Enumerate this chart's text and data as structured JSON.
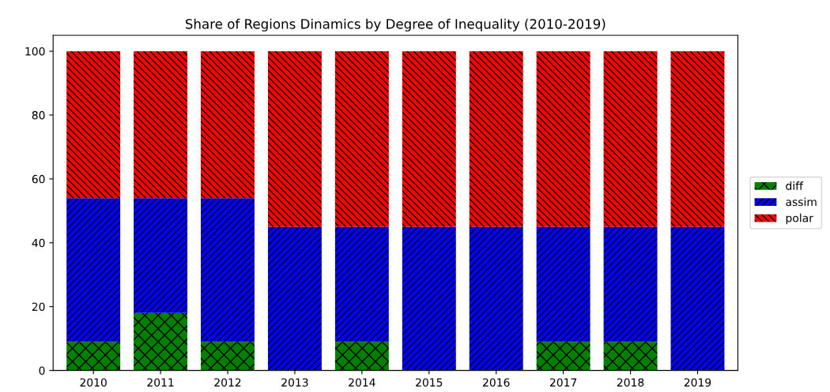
{
  "chart_data": {
    "type": "bar",
    "title": "Share of Regions Dinamics by Degree of Inequality (2010-2019)",
    "categories": [
      "2010",
      "2011",
      "2012",
      "2013",
      "2014",
      "2015",
      "2016",
      "2017",
      "2018",
      "2019"
    ],
    "stacked": true,
    "series": [
      {
        "name": "diff",
        "color": "#008000",
        "values": [
          9,
          18,
          9,
          0,
          9,
          0,
          0,
          9,
          9,
          0
        ]
      },
      {
        "name": "assim",
        "color": "#0000ff",
        "values": [
          45,
          36,
          45,
          45,
          36,
          45,
          45,
          36,
          36,
          45
        ]
      },
      {
        "name": "polar",
        "color": "#ff0000",
        "values": [
          46,
          46,
          46,
          55,
          55,
          55,
          55,
          55,
          55,
          55
        ]
      }
    ],
    "ylim": [
      0,
      105
    ],
    "yticks": [
      0,
      20,
      40,
      60,
      80,
      100
    ],
    "grid": false,
    "legend": "right"
  }
}
